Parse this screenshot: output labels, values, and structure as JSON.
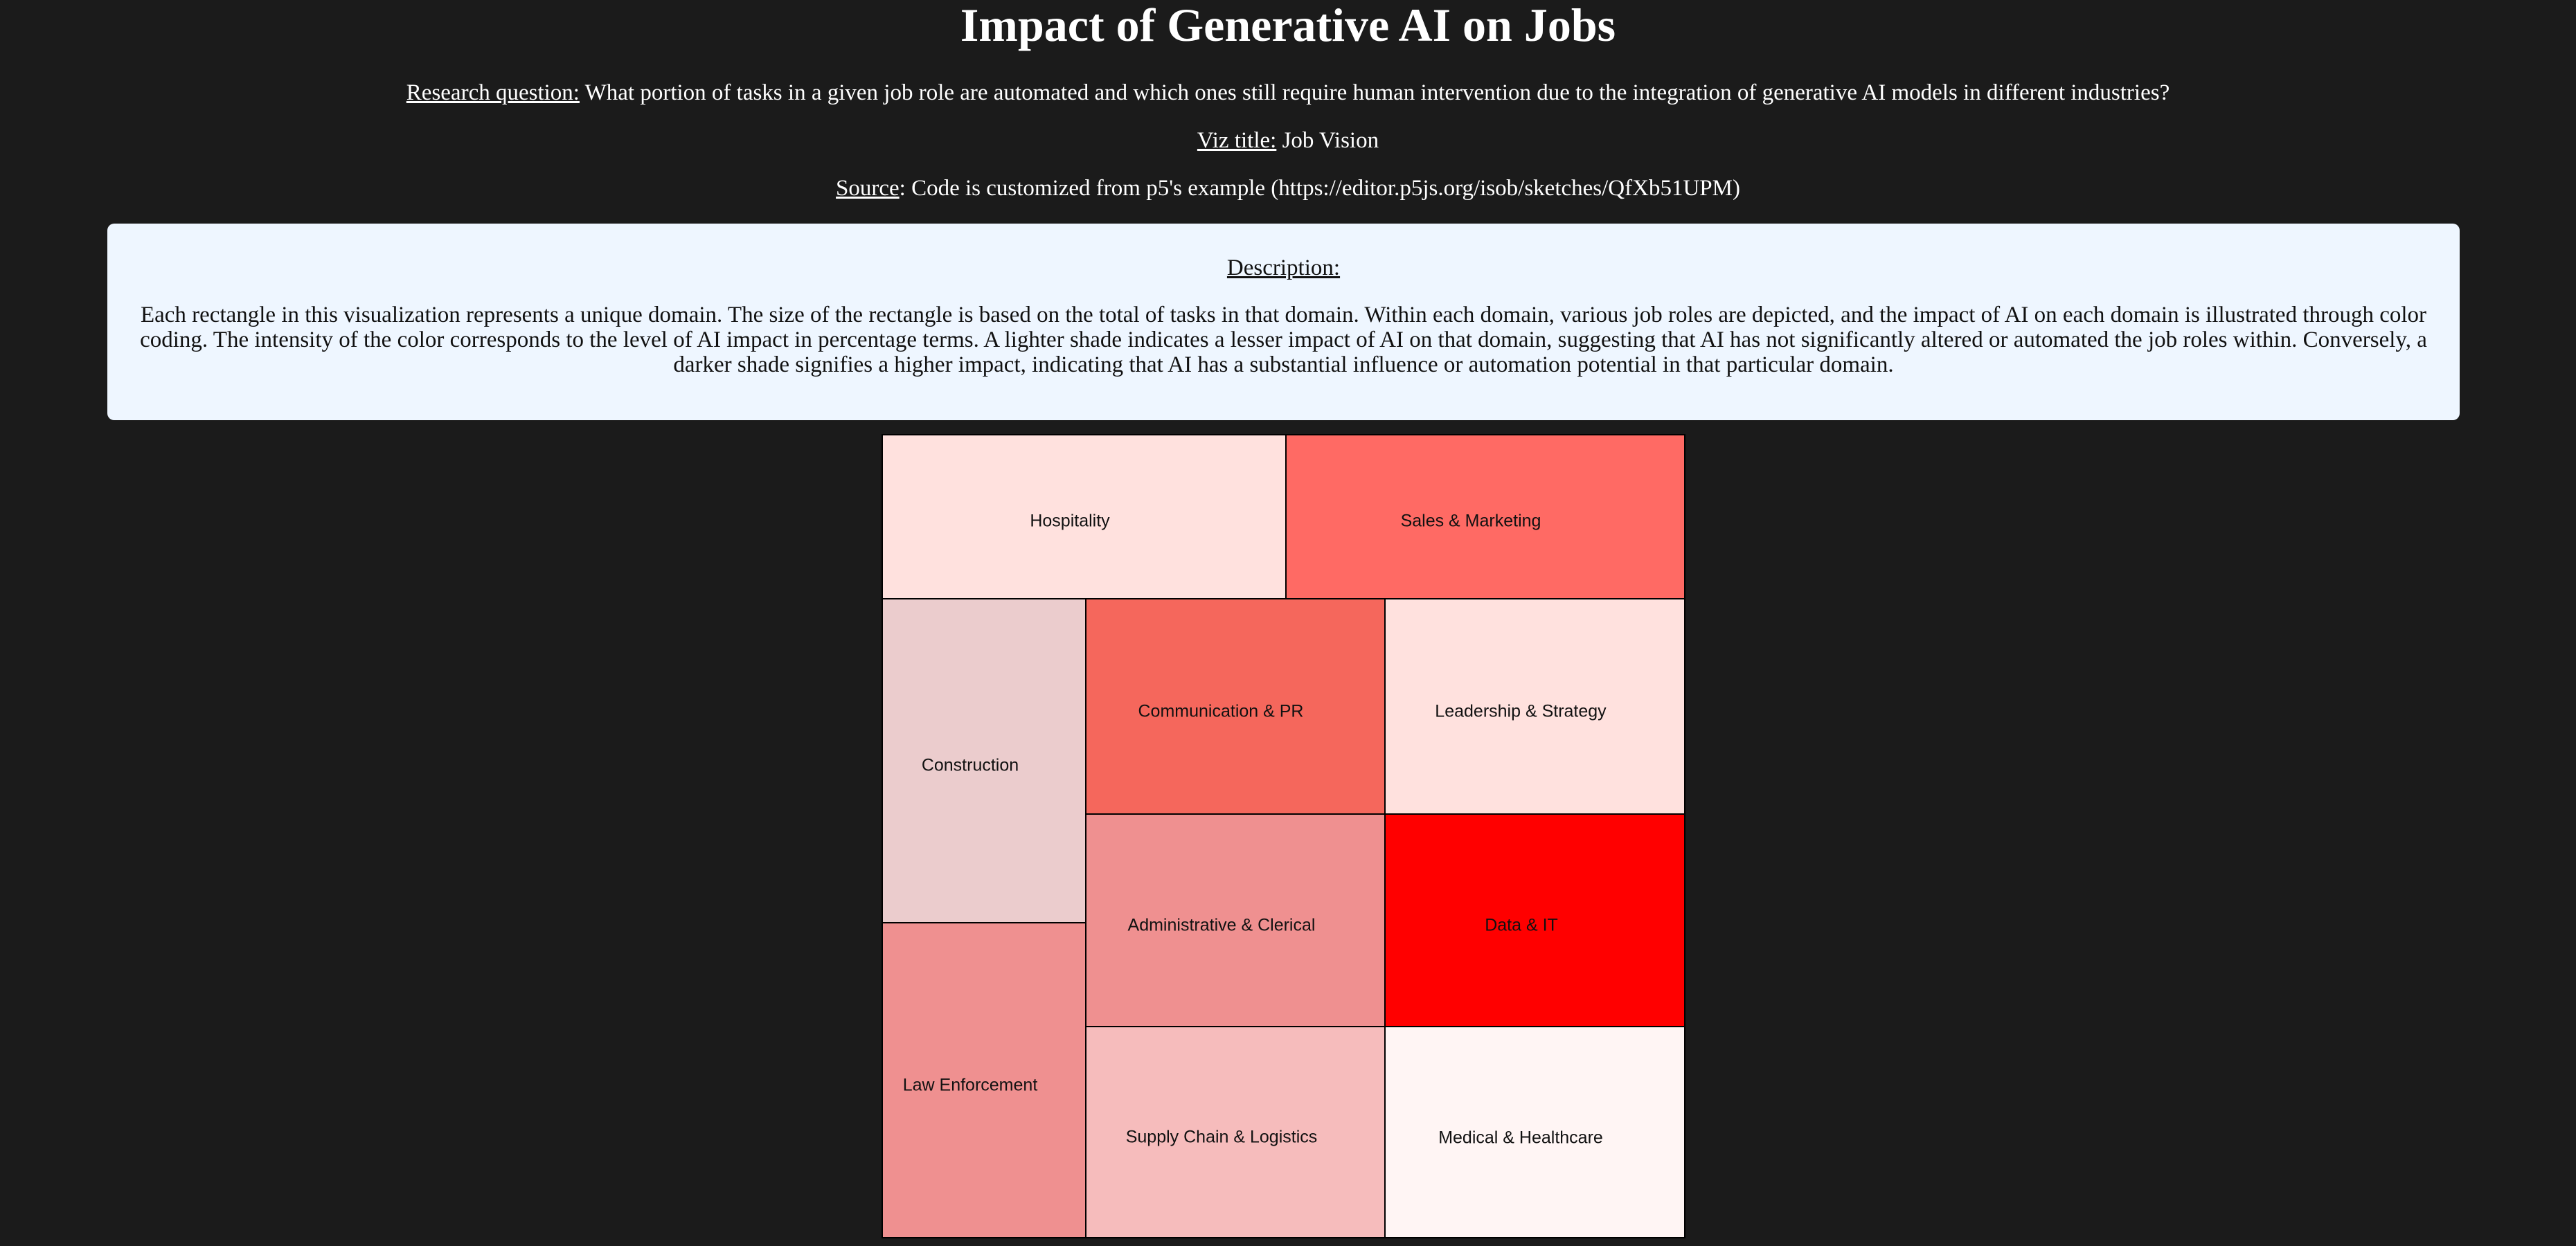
{
  "page": {
    "title": "Impact of Generative AI on Jobs",
    "research_question_label": "Research question:",
    "research_question": "What portion of tasks in a given job role are automated and which ones still require human intervention due to the integration of generative AI models in different industries?",
    "viz_title_label": "Viz title:",
    "viz_title": "Job Vision",
    "source_label": "Source",
    "source": ": Code is customized from p5's example (https://editor.p5js.org/isob/sketches/QfXb51UPM)"
  },
  "description": {
    "heading": "Description:",
    "text": "Each rectangle in this visualization represents a unique domain. The size of the rectangle is based on the total of tasks in that domain. Within each domain, various job roles are depicted, and the impact of AI on each domain is illustrated through color coding. The intensity of the color corresponds to the level of AI impact in percentage terms. A lighter shade indicates a lesser impact of AI on that domain, suggesting that AI has not significantly altered or automated the job roles within. Conversely, a darker shade signifies a higher impact, indicating that AI has a substantial influence or automation potential in that particular domain."
  },
  "chart_data": {
    "type": "treemap",
    "domains": [
      {
        "name": "Hospitality",
        "color": "#ffe1de"
      },
      {
        "name": "Sales & Marketing",
        "color": "#ff6a64"
      },
      {
        "name": "Construction",
        "color": "#ebcccd"
      },
      {
        "name": "Communication & PR",
        "color": "#f5675c"
      },
      {
        "name": "Leadership & Strategy",
        "color": "#ffe1de"
      },
      {
        "name": "Administrative & Clerical",
        "color": "#ef9090"
      },
      {
        "name": "Data & IT",
        "color": "#ff0000"
      },
      {
        "name": "Law Enforcement",
        "color": "#ef9090"
      },
      {
        "name": "Supply Chain & Logistics",
        "color": "#f6bcbc"
      },
      {
        "name": "Medical & Healthcare",
        "color": "#fff5f4"
      }
    ]
  }
}
